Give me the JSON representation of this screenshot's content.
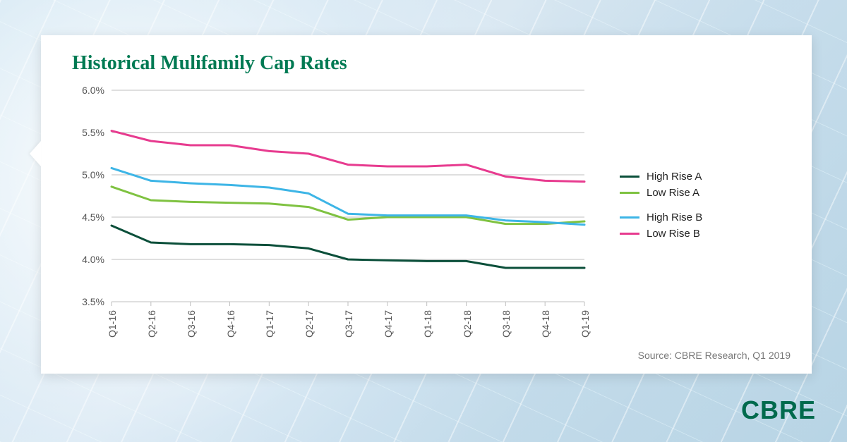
{
  "chart": {
    "type": "line",
    "title": "Historical Mulifamily Cap Rates",
    "title_color": "#007a53",
    "title_fontsize": 28,
    "background_color": "#ffffff",
    "grid_color": "#bfbfbf",
    "grid_width": 1,
    "axis_label_color": "#555555",
    "axis_label_fontsize": 14,
    "line_width": 3,
    "ylim": [
      3.5,
      6.0
    ],
    "ytick_step": 0.5,
    "ytick_labels": [
      "3.5%",
      "4.0%",
      "4.5%",
      "5.0%",
      "5.5%",
      "6.0%"
    ],
    "categories": [
      "Q1-16",
      "Q2-16",
      "Q3-16",
      "Q4-16",
      "Q1-17",
      "Q2-17",
      "Q3-17",
      "Q4-17",
      "Q1-18",
      "Q2-18",
      "Q3-18",
      "Q4-18",
      "Q1-19"
    ],
    "series": [
      {
        "name": "High Rise A",
        "color": "#0b4f3a",
        "values": [
          4.4,
          4.2,
          4.18,
          4.18,
          4.17,
          4.13,
          4.0,
          3.99,
          3.98,
          3.98,
          3.9,
          3.9,
          3.9
        ]
      },
      {
        "name": "Low Rise A",
        "color": "#7fc241",
        "values": [
          4.86,
          4.7,
          4.68,
          4.67,
          4.66,
          4.62,
          4.47,
          4.5,
          4.5,
          4.5,
          4.42,
          4.42,
          4.45
        ]
      },
      {
        "name": "High Rise B",
        "color": "#3db5e6",
        "values": [
          5.08,
          4.93,
          4.9,
          4.88,
          4.85,
          4.78,
          4.54,
          4.52,
          4.52,
          4.52,
          4.46,
          4.44,
          4.41
        ]
      },
      {
        "name": "Low Rise B",
        "color": "#e73b8f",
        "values": [
          5.52,
          5.4,
          5.35,
          5.35,
          5.28,
          5.25,
          5.12,
          5.1,
          5.1,
          5.12,
          4.98,
          4.93,
          4.92
        ]
      }
    ],
    "legend_groups": [
      [
        0,
        1
      ],
      [
        2,
        3
      ]
    ],
    "source": "Source: CBRE Research, Q1 2019"
  },
  "brand": {
    "logo_text": "CBRE",
    "logo_color": "#006a4d"
  }
}
